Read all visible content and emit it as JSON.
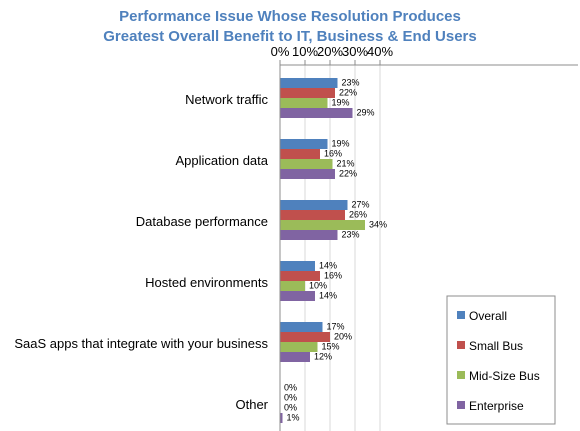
{
  "chart_data": {
    "type": "bar",
    "orientation": "horizontal",
    "title": "Performance Issue Whose Resolution Produces Greatest Overall Benefit to IT, Business & End Users",
    "title_lines": [
      "Performance Issue Whose Resolution Produces",
      "Greatest Overall Benefit to IT, Business & End Users"
    ],
    "xlabel": "",
    "ylabel": "",
    "xlim": [
      0,
      40
    ],
    "x_axis_position": "top",
    "x_ticks": [
      0,
      10,
      20,
      30,
      40
    ],
    "x_tick_labels": [
      "0%",
      "10%",
      "20%",
      "30%",
      "40%"
    ],
    "grid": true,
    "legend_position": "bottom-right",
    "categories": [
      "Network traffic",
      "Application data",
      "Database performance",
      "Hosted environments",
      "SaaS apps that integrate with your business",
      "Other"
    ],
    "series": [
      {
        "name": "Overall",
        "color": "#4f81bd",
        "values": [
          23,
          19,
          27,
          14,
          17,
          0
        ],
        "labels": [
          "23%",
          "19%",
          "27%",
          "14%",
          "17%",
          "0%"
        ]
      },
      {
        "name": "Small Bus",
        "color": "#c0504d",
        "values": [
          22,
          16,
          26,
          16,
          20,
          0
        ],
        "labels": [
          "22%",
          "16%",
          "26%",
          "16%",
          "20%",
          "0%"
        ]
      },
      {
        "name": "Mid-Size Bus",
        "color": "#9bbb59",
        "values": [
          19,
          21,
          34,
          10,
          15,
          0
        ],
        "labels": [
          "19%",
          "21%",
          "34%",
          "10%",
          "15%",
          "0%"
        ]
      },
      {
        "name": "Enterprise",
        "color": "#8064a2",
        "values": [
          29,
          22,
          23,
          14,
          12,
          1
        ],
        "labels": [
          "29%",
          "22%",
          "23%",
          "14%",
          "12%",
          "1%"
        ]
      }
    ]
  }
}
